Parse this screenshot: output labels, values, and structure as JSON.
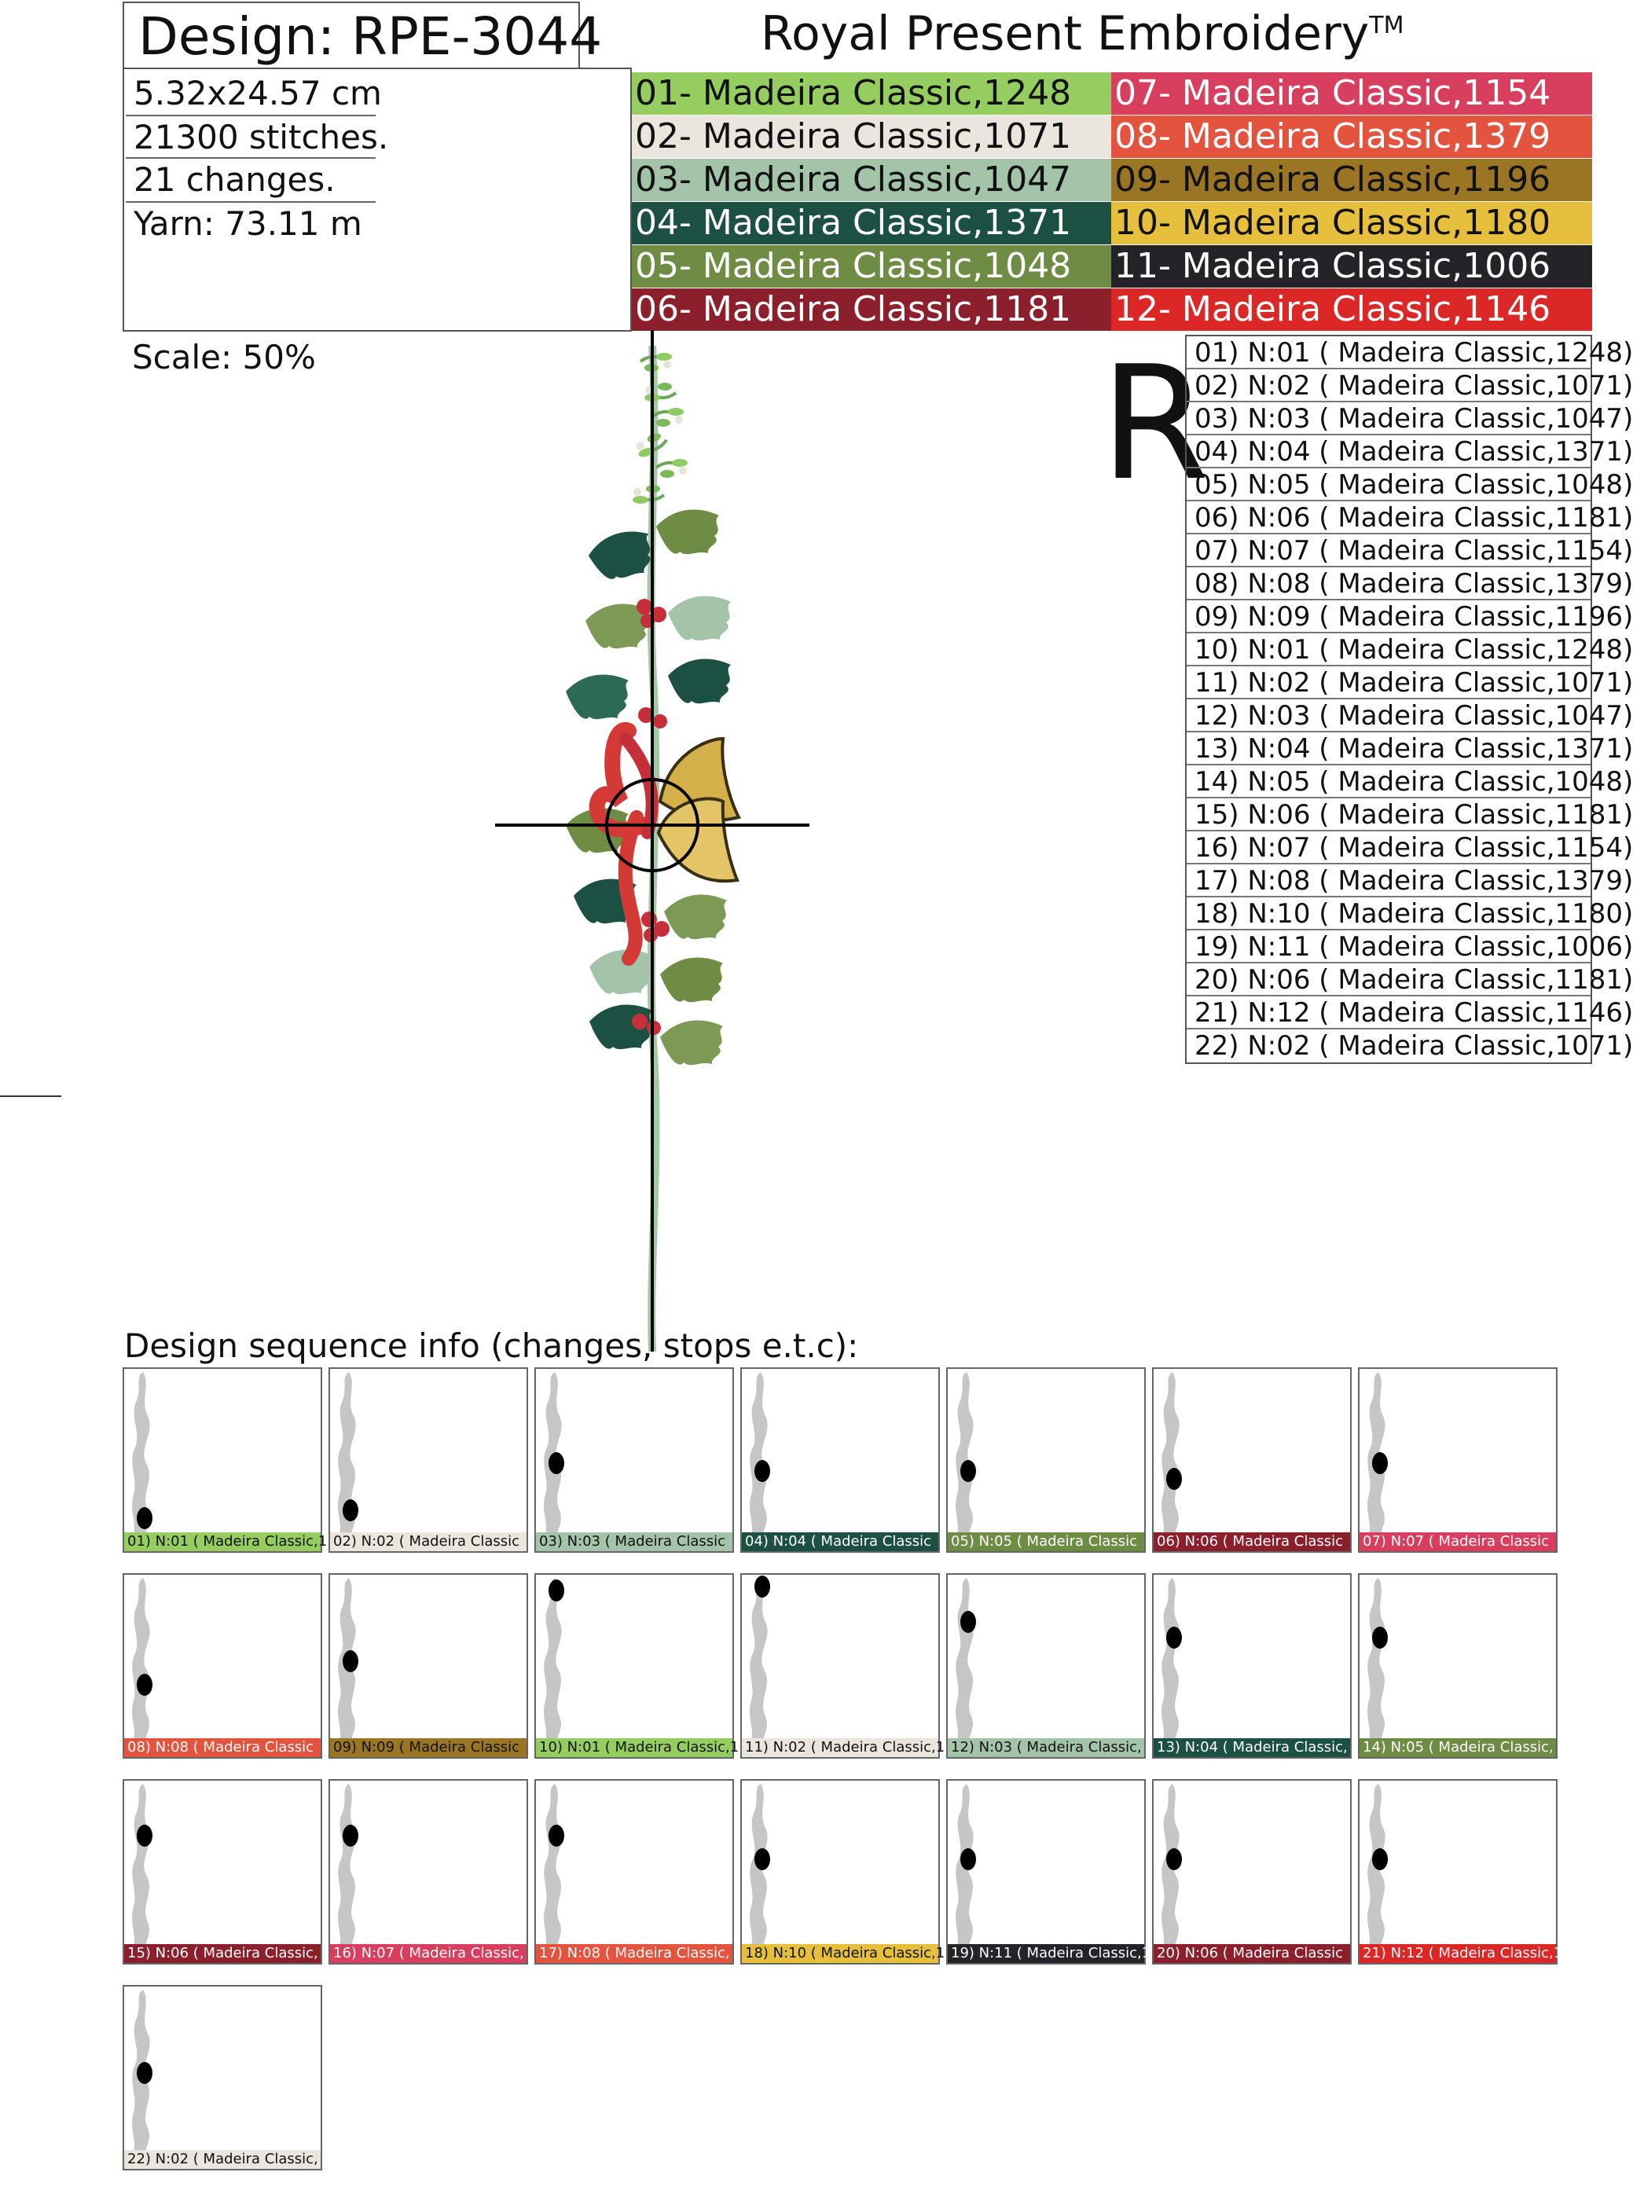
{
  "header": {
    "design_label": "Design: RPE-3044",
    "brand": "Royal Present Embroidery",
    "trademark": "TM"
  },
  "info": {
    "size": "5.32x24.57 cm",
    "stitches": "21300 stitches.",
    "changes": "21 changes.",
    "yarn": "Yarn: 73.11 m"
  },
  "scale": "Scale: 50%",
  "mark": "R",
  "palette": [
    {
      "label": "01- Madeira Classic,1248",
      "color": "#96cd60",
      "text": "#111111"
    },
    {
      "label": "02- Madeira Classic,1071",
      "color": "#ebe6dd",
      "text": "#111111"
    },
    {
      "label": "03- Madeira Classic,1047",
      "color": "#a3c4a8",
      "text": "#111111"
    },
    {
      "label": "04- Madeira Classic,1371",
      "color": "#1b5043",
      "text": "#ffffff"
    },
    {
      "label": "05- Madeira Classic,1048",
      "color": "#6f8c45",
      "text": "#ffffff"
    },
    {
      "label": "06- Madeira Classic,1181",
      "color": "#8c1f2c",
      "text": "#ffffff"
    },
    {
      "label": "07- Madeira Classic,1154",
      "color": "#d83f5e",
      "text": "#ffffff"
    },
    {
      "label": "08- Madeira Classic,1379",
      "color": "#e4533d",
      "text": "#ffffff"
    },
    {
      "label": "09- Madeira Classic,1196",
      "color": "#9a7624",
      "text": "#111111"
    },
    {
      "label": "10- Madeira Classic,1180",
      "color": "#e6bf3c",
      "text": "#111111"
    },
    {
      "label": "11- Madeira Classic,1006",
      "color": "#242428",
      "text": "#ffffff"
    },
    {
      "label": "12- Madeira Classic,1146",
      "color": "#dc2727",
      "text": "#ffffff"
    }
  ],
  "sequence": [
    {
      "label": "01) N:01 ( Madeira Classic,1248)",
      "short": "01) N:01 ( Madeira Classic,1",
      "color": "#96cd60",
      "text": "#111111"
    },
    {
      "label": "02) N:02 ( Madeira Classic,1071)",
      "short": "02) N:02 ( Madeira Classic",
      "color": "#ebe6dd",
      "text": "#111111"
    },
    {
      "label": "03) N:03 ( Madeira Classic,1047)",
      "short": "03) N:03 ( Madeira Classic",
      "color": "#a3c4a8",
      "text": "#111111"
    },
    {
      "label": "04) N:04 ( Madeira Classic,1371)",
      "short": "04) N:04 ( Madeira Classic",
      "color": "#1b5043",
      "text": "#ffffff"
    },
    {
      "label": "05) N:05 ( Madeira Classic,1048)",
      "short": "05) N:05 ( Madeira Classic",
      "color": "#6f8c45",
      "text": "#ffffff"
    },
    {
      "label": "06) N:06 ( Madeira Classic,1181)",
      "short": "06) N:06 ( Madeira Classic",
      "color": "#8c1f2c",
      "text": "#ffffff"
    },
    {
      "label": "07) N:07 ( Madeira Classic,1154)",
      "short": "07) N:07 ( Madeira Classic",
      "color": "#d83f5e",
      "text": "#ffffff"
    },
    {
      "label": "08) N:08 ( Madeira Classic,1379)",
      "short": "08) N:08 ( Madeira Classic",
      "color": "#e4533d",
      "text": "#ffffff"
    },
    {
      "label": "09) N:09 ( Madeira Classic,1196)",
      "short": "09) N:09 ( Madeira Classic",
      "color": "#9a7624",
      "text": "#111111"
    },
    {
      "label": "10) N:01 ( Madeira Classic,1248)",
      "short": "10) N:01 ( Madeira Classic,1",
      "color": "#96cd60",
      "text": "#111111"
    },
    {
      "label": "11) N:02 ( Madeira Classic,1071)",
      "short": "11) N:02 ( Madeira Classic,1",
      "color": "#ebe6dd",
      "text": "#111111"
    },
    {
      "label": "12) N:03 ( Madeira Classic,1047)",
      "short": "12) N:03 ( Madeira Classic,",
      "color": "#a3c4a8",
      "text": "#111111"
    },
    {
      "label": "13) N:04 ( Madeira Classic,1371)",
      "short": "13) N:04 ( Madeira Classic,",
      "color": "#1b5043",
      "text": "#ffffff"
    },
    {
      "label": "14) N:05 ( Madeira Classic,1048)",
      "short": "14) N:05 ( Madeira Classic,",
      "color": "#6f8c45",
      "text": "#ffffff"
    },
    {
      "label": "15) N:06 ( Madeira Classic,1181)",
      "short": "15) N:06 ( Madeira Classic,",
      "color": "#8c1f2c",
      "text": "#ffffff"
    },
    {
      "label": "16) N:07 ( Madeira Classic,1154)",
      "short": "16) N:07 ( Madeira Classic,",
      "color": "#d83f5e",
      "text": "#ffffff"
    },
    {
      "label": "17) N:08 ( Madeira Classic,1379)",
      "short": "17) N:08 ( Madeira Classic,",
      "color": "#e4533d",
      "text": "#ffffff"
    },
    {
      "label": "18) N:10 ( Madeira Classic,1180)",
      "short": "18) N:10 ( Madeira Classic,1",
      "color": "#e6bf3c",
      "text": "#111111"
    },
    {
      "label": "19) N:11 ( Madeira Classic,1006)",
      "short": "19) N:11 ( Madeira Classic,1(",
      "color": "#242428",
      "text": "#ffffff"
    },
    {
      "label": "20) N:06 ( Madeira Classic,1181)",
      "short": "20) N:06 ( Madeira Classic",
      "color": "#8c1f2c",
      "text": "#ffffff"
    },
    {
      "label": "21) N:12 ( Madeira Classic,1146)",
      "short": "21) N:12 ( Madeira Classic,1",
      "color": "#dc2727",
      "text": "#ffffff"
    },
    {
      "label": "22) N:02 ( Madeira Classic,1071)",
      "short": "22) N:02 ( Madeira Classic,",
      "color": "#ebe6dd",
      "text": "#111111"
    }
  ],
  "sequence_heading": "Design sequence info (changes, stops e.t.c):"
}
